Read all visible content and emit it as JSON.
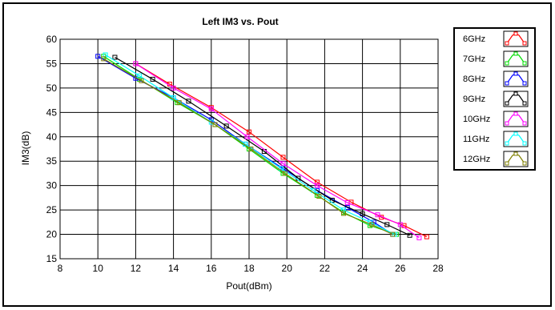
{
  "chart_data": {
    "type": "line",
    "title": "Left IM3 vs. Pout",
    "xlabel": "Pout(dBm)",
    "ylabel": "IM3(dB)",
    "xlim": [
      8,
      28
    ],
    "ylim": [
      15,
      60
    ],
    "xticks": [
      8,
      10,
      12,
      14,
      16,
      18,
      20,
      22,
      24,
      26,
      28
    ],
    "yticks": [
      15,
      20,
      25,
      30,
      35,
      40,
      45,
      50,
      55,
      60
    ],
    "grid": true,
    "legend_position": "right",
    "series": [
      {
        "name": "6GHz",
        "color": "#ff0000",
        "x": [
          12.0,
          13.8,
          16.0,
          18.0,
          19.8,
          21.6,
          23.4,
          25.0,
          26.2,
          27.4
        ],
        "y": [
          55.0,
          50.8,
          46.0,
          41.0,
          35.8,
          30.7,
          26.6,
          23.5,
          21.8,
          19.5
        ]
      },
      {
        "name": "7GHz",
        "color": "#00dd00",
        "x": [
          10.3,
          12.2,
          14.2,
          16.2,
          18.0,
          19.8,
          21.6,
          23.0,
          24.4,
          25.8
        ],
        "y": [
          56.5,
          51.8,
          47.0,
          42.5,
          37.5,
          32.5,
          28.0,
          24.5,
          21.8,
          20.0
        ]
      },
      {
        "name": "8GHz",
        "color": "#0000ff",
        "x": [
          10.0,
          12.0,
          14.0,
          16.0,
          17.8,
          19.8,
          21.6,
          23.2,
          24.6,
          25.6
        ],
        "y": [
          56.5,
          52.0,
          48.0,
          43.5,
          38.5,
          33.5,
          29.0,
          25.5,
          22.5,
          20.0
        ]
      },
      {
        "name": "9GHz",
        "color": "#000000",
        "x": [
          10.9,
          12.9,
          14.8,
          16.8,
          18.8,
          20.6,
          22.4,
          24.0,
          25.3,
          26.5
        ],
        "y": [
          56.3,
          51.8,
          47.3,
          42.2,
          37.0,
          31.5,
          27.0,
          24.2,
          22.0,
          19.8
        ]
      },
      {
        "name": "10GHz",
        "color": "#ff00ff",
        "x": [
          12.0,
          14.0,
          16.0,
          17.9,
          19.8,
          21.6,
          23.2,
          24.8,
          26.0,
          27.0
        ],
        "y": [
          55.0,
          50.0,
          45.7,
          40.0,
          34.5,
          30.0,
          26.5,
          24.0,
          22.0,
          19.3
        ]
      },
      {
        "name": "11GHz",
        "color": "#00ffff",
        "x": [
          10.4,
          12.2,
          14.0,
          16.0,
          17.8,
          19.7,
          21.4,
          23.0,
          24.4,
          25.7
        ],
        "y": [
          56.8,
          52.5,
          48.0,
          43.0,
          38.5,
          33.5,
          29.0,
          25.0,
          22.5,
          20.0
        ]
      },
      {
        "name": "12GHz",
        "color": "#808000",
        "x": [
          10.3,
          12.3,
          14.3,
          16.2,
          18.1,
          19.9,
          21.7,
          23.0,
          24.5,
          25.6
        ],
        "y": [
          56.0,
          51.5,
          47.0,
          42.5,
          37.5,
          32.5,
          27.8,
          24.3,
          22.0,
          20.0
        ]
      }
    ]
  }
}
